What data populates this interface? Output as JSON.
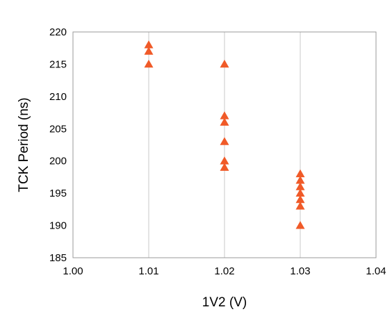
{
  "chart_data": {
    "type": "scatter",
    "title": "",
    "xlabel": "1V2 (V)",
    "ylabel": "TCK  Period (ns)",
    "xlim": [
      1.0,
      1.04
    ],
    "ylim": [
      185,
      220
    ],
    "xticks": [
      "1.00",
      "1.01",
      "1.02",
      "1.03",
      "1.04"
    ],
    "yticks": [
      "185",
      "190",
      "195",
      "200",
      "205",
      "210",
      "215",
      "220"
    ],
    "grid": "vertical",
    "legend": "none",
    "marker": "triangle",
    "series": [
      {
        "color": "#F05A28",
        "points": [
          [
            1.01,
            218
          ],
          [
            1.01,
            217
          ],
          [
            1.01,
            215
          ],
          [
            1.02,
            215
          ],
          [
            1.02,
            207
          ],
          [
            1.02,
            206
          ],
          [
            1.02,
            203
          ],
          [
            1.02,
            200
          ],
          [
            1.02,
            199
          ],
          [
            1.03,
            198
          ],
          [
            1.03,
            197
          ],
          [
            1.03,
            196
          ],
          [
            1.03,
            195
          ],
          [
            1.03,
            194
          ],
          [
            1.03,
            193
          ],
          [
            1.03,
            190
          ]
        ]
      }
    ]
  }
}
